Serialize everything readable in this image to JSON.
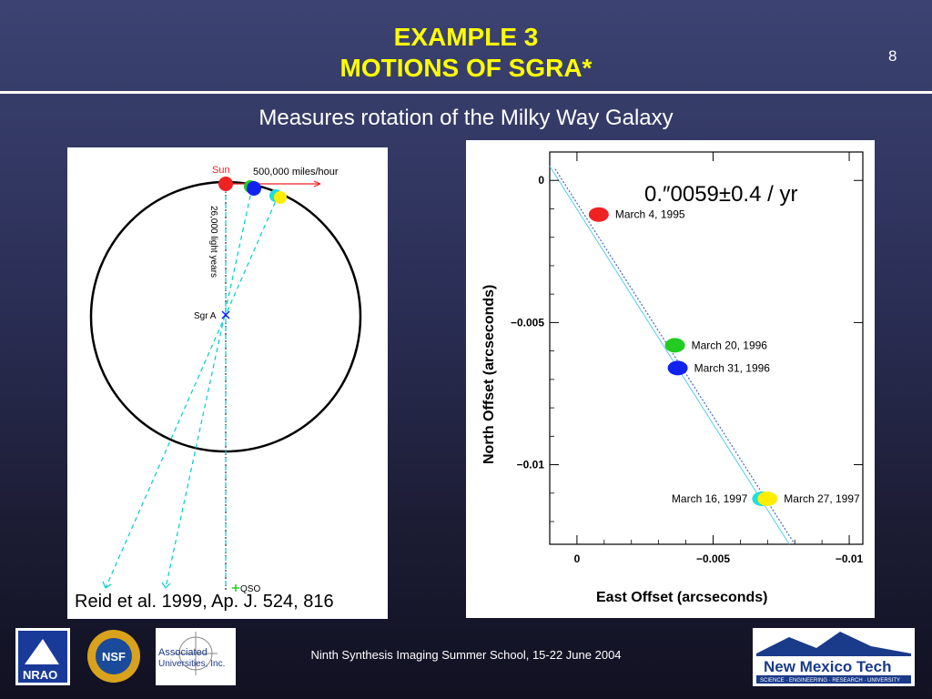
{
  "slide": {
    "title_line1": "EXAMPLE 3",
    "title_line2": "MOTIONS OF SGRA*",
    "number": "8",
    "subtitle": "Measures rotation of the Milky Way Galaxy",
    "footer": "Ninth Synthesis Imaging Summer School, 15-22 June 2004"
  },
  "diagram": {
    "sun_label": "Sun",
    "speed_label": "500,000 miles/hour",
    "distance_label": "26,000 light years",
    "sgra_label": "Sgr A",
    "qso_label": "QSO",
    "citation": "Reid et al. 1999, Ap. J. 524, 816"
  },
  "chart_data": {
    "type": "scatter",
    "title": "",
    "annotation": "0.″0059±0.4 / yr",
    "xlabel": "East Offset (arcseconds)",
    "ylabel": "North Offset (arcseconds)",
    "x_ticks": [
      "0",
      "−0.005",
      "−0.01"
    ],
    "y_ticks": [
      "0",
      "−0.005",
      "−0.01"
    ],
    "xlim": [
      0.001,
      -0.0105
    ],
    "ylim": [
      0.001,
      -0.0128
    ],
    "series": [
      {
        "name": "March 4, 1995",
        "x": -0.0008,
        "y": -0.0012,
        "color": "#ee2222"
      },
      {
        "name": "March 20, 1996",
        "x": -0.0036,
        "y": -0.0058,
        "color": "#22cc22"
      },
      {
        "name": "March 31, 1996",
        "x": -0.0037,
        "y": -0.0066,
        "color": "#1122ee"
      },
      {
        "name": "March 16, 1997",
        "x": -0.0068,
        "y": -0.0112,
        "color": "#22dddd"
      },
      {
        "name": "March 27, 1997",
        "x": -0.007,
        "y": -0.0112,
        "color": "#ffee00"
      }
    ]
  },
  "logos": {
    "nrao": "NRAO",
    "nsf": "NSF",
    "aui_line1": "Associated",
    "aui_line2": "Universities, Inc.",
    "nmt_name": "New Mexico Tech",
    "nmt_tagline": "SCIENCE · ENGINEERING · RESEARCH · UNIVERSITY"
  }
}
